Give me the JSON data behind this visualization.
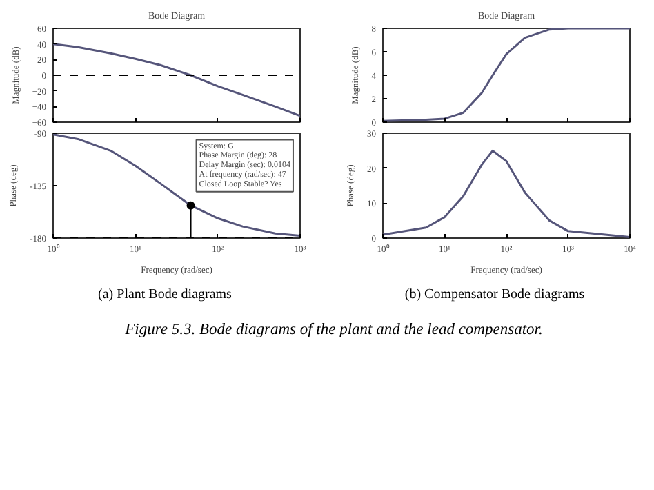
{
  "chart_data": [
    {
      "type": "line",
      "title": "Bode Diagram",
      "ylabel": "Magnitude (dB)",
      "x": [
        1,
        2,
        5,
        10,
        20,
        47,
        100,
        200,
        500,
        1000
      ],
      "series": [
        {
          "color": "#55557a",
          "values": [
            40,
            36,
            28,
            21,
            13,
            0,
            -14,
            -25,
            -40,
            -52
          ]
        }
      ],
      "xlim": [
        1,
        1000
      ],
      "xticks": [
        {
          "value": 1,
          "label": null
        },
        {
          "value": 10,
          "label": null
        },
        {
          "value": 100,
          "label": null
        },
        {
          "value": 1000,
          "label": null
        }
      ],
      "ylim": [
        -60,
        60
      ],
      "yticks": [
        -60,
        -40,
        -20,
        0,
        20,
        40,
        60
      ],
      "log": "x",
      "tick_labels": "y",
      "ref_lines": [
        {
          "axis": "y",
          "value": 0,
          "color": "#000000",
          "line_style": "dashed"
        }
      ]
    },
    {
      "type": "line",
      "xlabel": "Frequency (rad/sec)",
      "ylabel": "Phase (deg)",
      "x": [
        1,
        2,
        5,
        10,
        20,
        47,
        100,
        200,
        500,
        1000
      ],
      "series": [
        {
          "color": "#55557a",
          "values": [
            -91,
            -95,
            -105,
            -118,
            -133,
            -152,
            -163,
            -170,
            -176,
            -178
          ]
        },
        {
          "type": "scatter",
          "color": "#000000",
          "x": [
            47
          ],
          "values": [
            -152
          ],
          "errors": [
            [
              -180,
              -152
            ]
          ]
        }
      ],
      "xlim": [
        1,
        1000
      ],
      "xticks": [
        {
          "value": 1,
          "label": "10⁰"
        },
        {
          "value": 10,
          "label": "10¹"
        },
        {
          "value": 100,
          "label": "10²"
        },
        {
          "value": 1000,
          "label": "10³"
        }
      ],
      "ylim": [
        -180,
        -90
      ],
      "yticks": [
        {
          "value": -180,
          "label": "-180"
        },
        {
          "value": -135,
          "label": "-135"
        },
        {
          "value": -90,
          "label": "-90"
        }
      ],
      "log": "x",
      "ref_lines": [
        {
          "axis": "y",
          "value": -180,
          "color": "#000000",
          "line_style": "dashed"
        }
      ],
      "annotations": [
        {
          "text": "System: G\nPhase Margin (deg): 28\nDelay Margin (sec): 0.0104\nAt frequency (rad/sec): 47\nClosed Loop Stable? Yes",
          "x": 47,
          "y": -152
        },
        "(a) Plant Bode diagrams"
      ]
    },
    {
      "type": "line",
      "title": "Bode Diagram",
      "ylabel": "Magnitude (dB)",
      "x": [
        1,
        5,
        10,
        20,
        40,
        60,
        100,
        200,
        500,
        1000,
        10000
      ],
      "series": [
        {
          "color": "#55557a",
          "values": [
            0.1,
            0.2,
            0.3,
            0.8,
            2.5,
            4,
            5.8,
            7.2,
            7.9,
            8,
            8
          ]
        }
      ],
      "xlim": [
        1,
        10000
      ],
      "xticks": [
        {
          "value": 1,
          "label": null
        },
        {
          "value": 10,
          "label": null
        },
        {
          "value": 100,
          "label": null
        },
        {
          "value": 1000,
          "label": null
        },
        {
          "value": 10000,
          "label": null
        }
      ],
      "ylim": [
        0,
        8
      ],
      "yticks": [
        0,
        2,
        4,
        6,
        8
      ],
      "log": "x",
      "tick_labels": "y"
    },
    {
      "type": "line",
      "xlabel": "Frequency (rad/sec)",
      "ylabel": "Phase (deg)",
      "x": [
        1,
        5,
        10,
        20,
        40,
        60,
        100,
        200,
        500,
        1000,
        10000
      ],
      "series": [
        {
          "color": "#55557a",
          "values": [
            1,
            3,
            6,
            12,
            21,
            25,
            22,
            13,
            5,
            2,
            0.3
          ]
        }
      ],
      "xlim": [
        1,
        10000
      ],
      "xticks": [
        {
          "value": 1,
          "label": "10⁰"
        },
        {
          "value": 10,
          "label": "10¹"
        },
        {
          "value": 100,
          "label": "10²"
        },
        {
          "value": 1000,
          "label": "10³"
        },
        {
          "value": 10000,
          "label": "10⁴"
        }
      ],
      "ylim": [
        0,
        30
      ],
      "yticks": [
        0,
        10,
        20,
        30
      ],
      "log": "x",
      "annotations": [
        "(b) Compensator Bode diagrams",
        "Figure 5.3. Bode diagrams of the plant and the lead compensator."
      ]
    }
  ]
}
